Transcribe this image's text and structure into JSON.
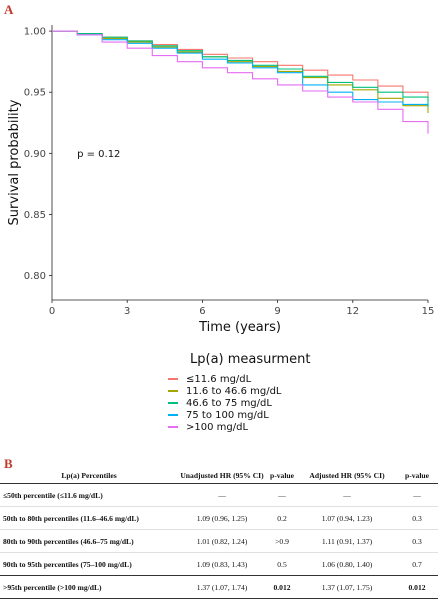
{
  "panel_a_label": "A",
  "panel_b_label": "B",
  "chart_data": {
    "type": "line",
    "xlabel": "Time (years)",
    "ylabel": "Survival probability",
    "xlim": [
      0,
      15
    ],
    "ylim": [
      0.78,
      1.005
    ],
    "x_ticks": [
      0,
      3,
      6,
      9,
      12,
      15
    ],
    "x_tick_labels": [
      "0",
      "3",
      "6",
      "9",
      "12",
      "15"
    ],
    "y_ticks": [
      0.8,
      0.85,
      0.9,
      0.95,
      1.0
    ],
    "y_tick_labels": [
      "0.80",
      "0.85",
      "0.90",
      "0.95",
      "1.00"
    ],
    "annotation": "p = 0.12",
    "legend_title": "Lp(a) measurment",
    "legend_position": "bottom",
    "series": [
      {
        "name": "≤11.6 mg/dL",
        "color": "#F8766D",
        "x": [
          0,
          1,
          2,
          3,
          4,
          5,
          6,
          7,
          8,
          9,
          10,
          11,
          12,
          13,
          14,
          15
        ],
        "y": [
          1.0,
          0.998,
          0.995,
          0.992,
          0.989,
          0.985,
          0.981,
          0.978,
          0.975,
          0.972,
          0.968,
          0.964,
          0.96,
          0.955,
          0.95,
          0.945
        ]
      },
      {
        "name": "11.6 to 46.6 mg/dL",
        "color": "#A3A500",
        "x": [
          0,
          1,
          2,
          3,
          4,
          5,
          6,
          7,
          8,
          9,
          10,
          11,
          12,
          13,
          14,
          15
        ],
        "y": [
          1.0,
          0.998,
          0.994,
          0.991,
          0.987,
          0.983,
          0.979,
          0.975,
          0.971,
          0.967,
          0.962,
          0.956,
          0.952,
          0.945,
          0.939,
          0.933
        ]
      },
      {
        "name": "46.6 to 75 mg/dL",
        "color": "#00BF7D",
        "x": [
          0,
          1,
          2,
          3,
          4,
          5,
          6,
          7,
          8,
          9,
          10,
          11,
          12,
          13,
          14,
          15
        ],
        "y": [
          1.0,
          0.998,
          0.995,
          0.992,
          0.988,
          0.984,
          0.979,
          0.976,
          0.972,
          0.969,
          0.963,
          0.958,
          0.954,
          0.95,
          0.946,
          0.938
        ]
      },
      {
        "name": "75 to 100 mg/dL",
        "color": "#00B0F6",
        "x": [
          0,
          1,
          2,
          3,
          4,
          5,
          6,
          7,
          8,
          9,
          10,
          11,
          12,
          13,
          14,
          15
        ],
        "y": [
          1.0,
          0.997,
          0.993,
          0.99,
          0.986,
          0.982,
          0.977,
          0.974,
          0.97,
          0.966,
          0.956,
          0.95,
          0.944,
          0.942,
          0.94,
          0.939
        ]
      },
      {
        "name": ">100 mg/dL",
        "color": "#E76BF3",
        "x": [
          0,
          1,
          2,
          3,
          4,
          5,
          6,
          7,
          8,
          9,
          10,
          11,
          12,
          13,
          14,
          15
        ],
        "y": [
          1.0,
          0.997,
          0.991,
          0.986,
          0.98,
          0.975,
          0.97,
          0.966,
          0.961,
          0.956,
          0.951,
          0.946,
          0.942,
          0.936,
          0.926,
          0.916
        ]
      }
    ]
  },
  "table": {
    "headers": [
      "Lp(a) Percentiles",
      "Unadjusted HR (95% CI)",
      "p-value",
      "Adjusted HR (95% CI)",
      "p-value"
    ],
    "rows": [
      {
        "label": "≤50th percentile (≤11.6 mg/dL)",
        "unadj": "—",
        "p1": "—",
        "adj": "—",
        "p2": "—"
      },
      {
        "label": "50th to 80th percentiles (11.6–46.6 mg/dL)",
        "unadj": "1.09 (0.96, 1.25)",
        "p1": "0.2",
        "adj": "1.07 (0.94, 1.23)",
        "p2": "0.3"
      },
      {
        "label": "80th to 90th percentiles (46.6–75 mg/dL)",
        "unadj": "1.01 (0.82, 1.24)",
        "p1": ">0.9",
        "adj": "1.11 (0.91, 1.37)",
        "p2": "0.3"
      },
      {
        "label": "90th to 95th percentiles (75–100 mg/dL)",
        "unadj": "1.09 (0.83, 1.43)",
        "p1": "0.5",
        "adj": "1.06 (0.80, 1.40)",
        "p2": "0.7"
      },
      {
        "label": ">95th percentile (>100 mg/dL)",
        "unadj": "1.37 (1.07, 1.74)",
        "p1": "0.012",
        "adj": "1.37 (1.07, 1.75)",
        "p2": "0.012"
      }
    ]
  }
}
